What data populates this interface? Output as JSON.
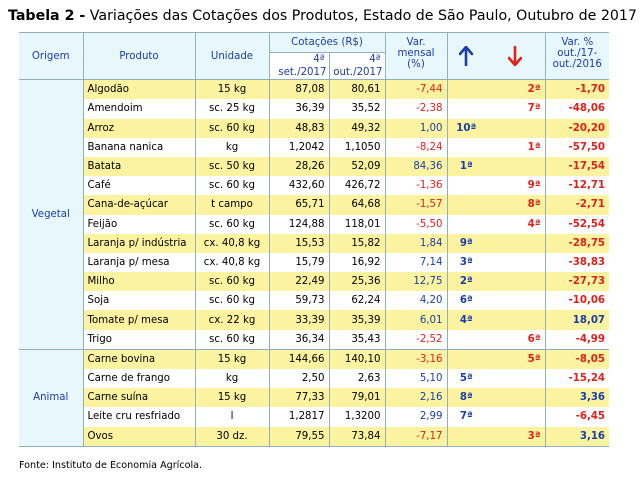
{
  "title_bold": "Tabela 2 -",
  "title_rest": " Variações das Cotações dos Produtos, Estado de São Paulo, Outubro de 2017",
  "header": {
    "origem": "Origem",
    "produto": "Produto",
    "unidade": "Unidade",
    "cotacoes": "Cotações (R$)",
    "sep_l1": "4ª",
    "sep_l2": "set./2017",
    "out_l1": "4ª",
    "out_l2": "out./2017",
    "var_l1": "Var.",
    "var_l2": "mensal",
    "var_l3": "(%)",
    "varp_l1": "Var. %",
    "varp_l2": "out./17-",
    "varp_l3": "out./2016"
  },
  "icons": {
    "up": "arrow-up-icon",
    "down": "arrow-down-icon",
    "up_color": "#1a3ea8",
    "down_color": "#e0201a"
  },
  "groups": [
    {
      "origem": "Vegetal",
      "rows": [
        {
          "produto": "Algodão",
          "unidade": "15 kg",
          "set": "87,08",
          "out": "80,61",
          "var": "-7,44",
          "up": "",
          "down": "2ª",
          "varp": "-1,70"
        },
        {
          "produto": "Amendoim",
          "unidade": "sc. 25 kg",
          "set": "36,39",
          "out": "35,52",
          "var": "-2,38",
          "up": "",
          "down": "7ª",
          "varp": "-48,06"
        },
        {
          "produto": "Arroz",
          "unidade": "sc. 60 kg",
          "set": "48,83",
          "out": "49,32",
          "var": "1,00",
          "up": "10ª",
          "down": "",
          "varp": "-20,20"
        },
        {
          "produto": "Banana nanica",
          "unidade": "kg",
          "set": "1,2042",
          "out": "1,1050",
          "var": "-8,24",
          "up": "",
          "down": "1ª",
          "varp": "-57,50"
        },
        {
          "produto": "Batata",
          "unidade": "sc. 50 kg",
          "set": "28,26",
          "out": "52,09",
          "var": "84,36",
          "up": "1ª",
          "down": "",
          "varp": "-17,54"
        },
        {
          "produto": "Café",
          "unidade": "sc. 60 kg",
          "set": "432,60",
          "out": "426,72",
          "var": "-1,36",
          "up": "",
          "down": "9ª",
          "varp": "-12,71"
        },
        {
          "produto": "Cana-de-açúcar",
          "unidade": "t campo",
          "set": "65,71",
          "out": "64,68",
          "var": "-1,57",
          "up": "",
          "down": "8ª",
          "varp": "-2,71"
        },
        {
          "produto": "Feijão",
          "unidade": "sc. 60 kg",
          "set": "124,88",
          "out": "118,01",
          "var": "-5,50",
          "up": "",
          "down": "4ª",
          "varp": "-52,54"
        },
        {
          "produto": "Laranja p/ indústria",
          "unidade": "cx. 40,8 kg",
          "set": "15,53",
          "out": "15,82",
          "var": "1,84",
          "up": "9ª",
          "down": "",
          "varp": "-28,75"
        },
        {
          "produto": "Laranja p/ mesa",
          "unidade": "cx. 40,8 kg",
          "set": "15,79",
          "out": "16,92",
          "var": "7,14",
          "up": "3ª",
          "down": "",
          "varp": "-38,83"
        },
        {
          "produto": "Milho",
          "unidade": "sc. 60 kg",
          "set": "22,49",
          "out": "25,36",
          "var": "12,75",
          "up": "2ª",
          "down": "",
          "varp": "-27,73"
        },
        {
          "produto": "Soja",
          "unidade": "sc. 60 kg",
          "set": "59,73",
          "out": "62,24",
          "var": "4,20",
          "up": "6ª",
          "down": "",
          "varp": "-10,06"
        },
        {
          "produto": "Tomate p/ mesa",
          "unidade": "cx. 22 kg",
          "set": "33,39",
          "out": "35,39",
          "var": "6,01",
          "up": "4ª",
          "down": "",
          "varp": "18,07"
        },
        {
          "produto": "Trigo",
          "unidade": "sc. 60 kg",
          "set": "36,34",
          "out": "35,43",
          "var": "-2,52",
          "up": "",
          "down": "6ª",
          "varp": "-4,99"
        }
      ]
    },
    {
      "origem": "Animal",
      "rows": [
        {
          "produto": "Carne bovina",
          "unidade": "15 kg",
          "set": "144,66",
          "out": "140,10",
          "var": "-3,16",
          "up": "",
          "down": "5ª",
          "varp": "-8,05"
        },
        {
          "produto": "Carne de frango",
          "unidade": "kg",
          "set": "2,50",
          "out": "2,63",
          "var": "5,10",
          "up": "5ª",
          "down": "",
          "varp": "-15,24"
        },
        {
          "produto": "Carne suína",
          "unidade": "15 kg",
          "set": "77,33",
          "out": "79,01",
          "var": "2,16",
          "up": "8ª",
          "down": "",
          "varp": "3,36"
        },
        {
          "produto": "Leite cru resfriado",
          "unidade": "l",
          "set": "1,2817",
          "out": "1,3200",
          "var": "2,99",
          "up": "7ª",
          "down": "",
          "varp": "-6,45"
        },
        {
          "produto": "Ovos",
          "unidade": "30 dz.",
          "set": "79,55",
          "out": "73,84",
          "var": "-7,17",
          "up": "",
          "down": "3ª",
          "varp": "3,16"
        }
      ]
    }
  ],
  "source": "Fonte: Instituto de Economia Agrícola."
}
